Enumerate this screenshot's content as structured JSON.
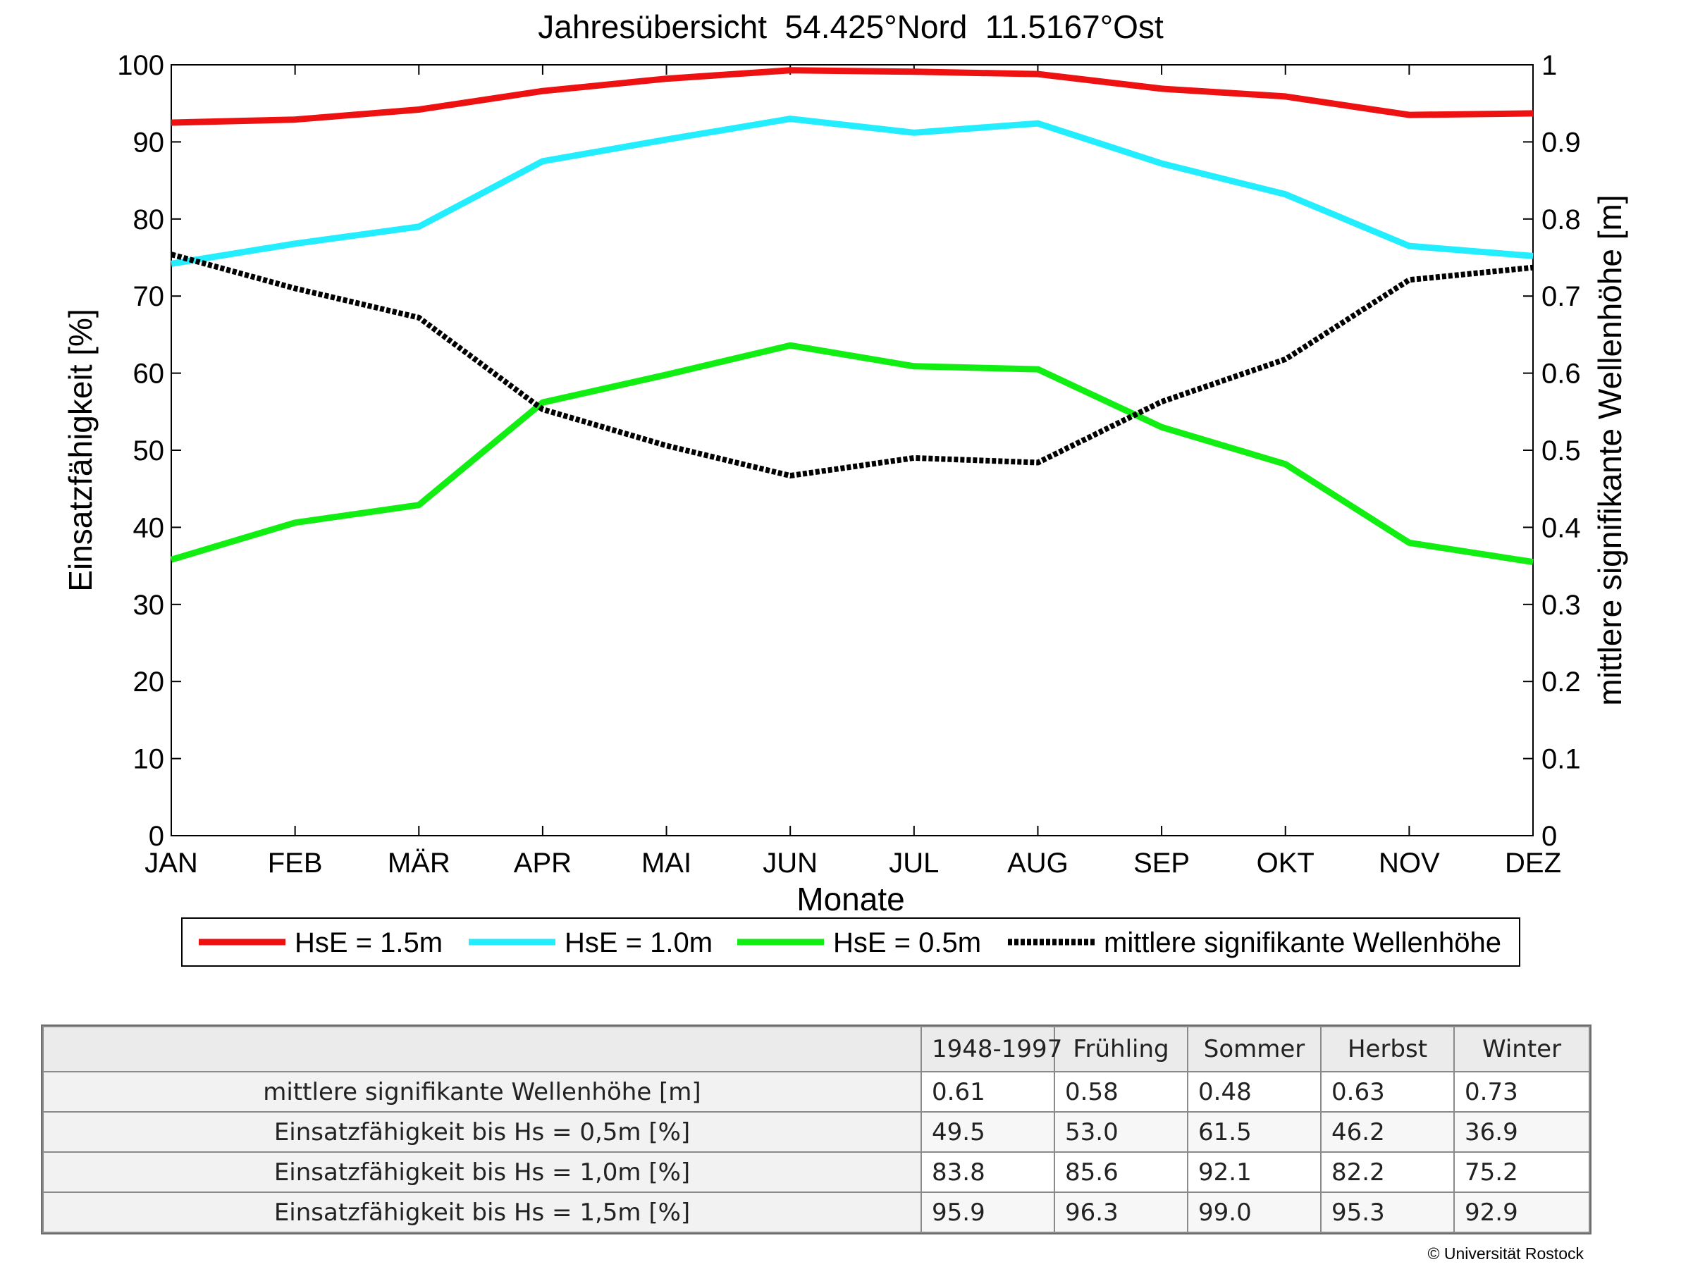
{
  "chart_data": {
    "type": "line",
    "title": "Jahresübersicht  54.425°Nord  11.5167°Ost",
    "xlabel": "Monate",
    "ylabel": "Einsatzfähigkeit [%]",
    "y2label": "mittlere signifikante Wellenhöhe [m]",
    "categories": [
      "JAN",
      "FEB",
      "MÄR",
      "APR",
      "MAI",
      "JUN",
      "JUL",
      "AUG",
      "SEP",
      "OKT",
      "NOV",
      "DEZ"
    ],
    "ylim": [
      0,
      100
    ],
    "y2lim": [
      0,
      1
    ],
    "yticks": [
      "0",
      "10",
      "20",
      "30",
      "40",
      "50",
      "60",
      "70",
      "80",
      "90",
      "100"
    ],
    "y2ticks": [
      "0",
      "0.1",
      "0.2",
      "0.3",
      "0.4",
      "0.5",
      "0.6",
      "0.7",
      "0.8",
      "0.9",
      "1"
    ],
    "grid": false,
    "legend_position": "bottom",
    "series": [
      {
        "name": "HsE = 1.5m",
        "axis": "left",
        "color": "#ee1111",
        "style": "solid",
        "values": [
          92.5,
          92.9,
          94.2,
          96.6,
          98.2,
          99.3,
          99.1,
          98.8,
          96.9,
          95.9,
          93.5,
          93.7
        ]
      },
      {
        "name": "HsE = 1.0m",
        "axis": "left",
        "color": "#22eeff",
        "style": "solid",
        "values": [
          74.2,
          76.8,
          79.0,
          87.5,
          90.3,
          93.0,
          91.2,
          92.4,
          87.2,
          83.2,
          76.5,
          75.2
        ]
      },
      {
        "name": "HsE = 0.5m",
        "axis": "left",
        "color": "#11ee11",
        "style": "solid",
        "values": [
          35.8,
          40.6,
          42.9,
          56.2,
          59.8,
          63.6,
          60.9,
          60.5,
          53.0,
          48.2,
          38.0,
          35.5
        ]
      },
      {
        "name": "mittlere signifikante Wellenhöhe",
        "axis": "right",
        "color": "#000000",
        "style": "dotted",
        "values": [
          0.754,
          0.71,
          0.672,
          0.553,
          0.506,
          0.467,
          0.49,
          0.484,
          0.563,
          0.618,
          0.721,
          0.737
        ]
      }
    ]
  },
  "table": {
    "headers": [
      "1948-1997",
      "Frühling",
      "Sommer",
      "Herbst",
      "Winter"
    ],
    "rows": [
      {
        "label": "mittlere signifikante Wellenhöhe [m]",
        "values": [
          "0.61",
          "0.58",
          "0.48",
          "0.63",
          "0.73"
        ]
      },
      {
        "label": "Einsatzfähigkeit bis Hs = 0,5m [%]",
        "values": [
          "49.5",
          "53.0",
          "61.5",
          "46.2",
          "36.9"
        ]
      },
      {
        "label": "Einsatzfähigkeit bis Hs = 1,0m [%]",
        "values": [
          "83.8",
          "85.6",
          "92.1",
          "82.2",
          "75.2"
        ]
      },
      {
        "label": "Einsatzfähigkeit bis Hs = 1,5m [%]",
        "values": [
          "95.9",
          "96.3",
          "99.0",
          "95.3",
          "92.9"
        ]
      }
    ]
  },
  "copyright": "© Universität Rostock"
}
